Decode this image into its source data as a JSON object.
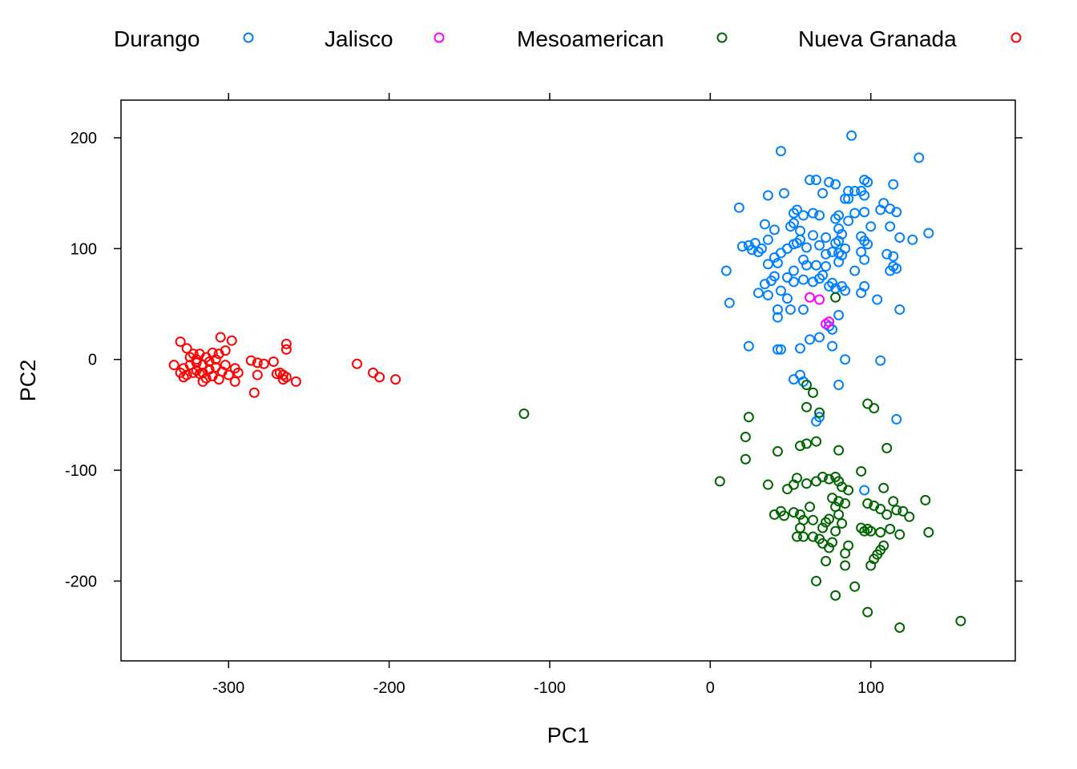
{
  "chart_data": {
    "type": "scatter",
    "title": "",
    "xlabel": "PC1",
    "ylabel": "PC2",
    "xlim": [
      -367,
      190
    ],
    "ylim": [
      -272,
      234
    ],
    "xticks": [
      -300,
      -200,
      -100,
      0,
      100
    ],
    "yticks": [
      -200,
      -100,
      0,
      100,
      200
    ],
    "legend_position": "top",
    "series": [
      {
        "name": "Durango",
        "color": "#0080ff",
        "points": [
          [
            88,
            202
          ],
          [
            44,
            188
          ],
          [
            130,
            182
          ],
          [
            62,
            162
          ],
          [
            66,
            162
          ],
          [
            96,
            162
          ],
          [
            98,
            160
          ],
          [
            74,
            160
          ],
          [
            78,
            158
          ],
          [
            114,
            158
          ],
          [
            94,
            152
          ],
          [
            90,
            152
          ],
          [
            86,
            152
          ],
          [
            70,
            150
          ],
          [
            46,
            150
          ],
          [
            36,
            148
          ],
          [
            96,
            148
          ],
          [
            84,
            145
          ],
          [
            86,
            145
          ],
          [
            18,
            137
          ],
          [
            108,
            141
          ],
          [
            112,
            136
          ],
          [
            106,
            135
          ],
          [
            116,
            133
          ],
          [
            54,
            135
          ],
          [
            52,
            132
          ],
          [
            58,
            130
          ],
          [
            64,
            132
          ],
          [
            68,
            130
          ],
          [
            90,
            132
          ],
          [
            96,
            133
          ],
          [
            80,
            130
          ],
          [
            78,
            127
          ],
          [
            86,
            125
          ],
          [
            52,
            123
          ],
          [
            50,
            120
          ],
          [
            56,
            116
          ],
          [
            34,
            122
          ],
          [
            40,
            117
          ],
          [
            100,
            120
          ],
          [
            112,
            120
          ],
          [
            80,
            118
          ],
          [
            82,
            113
          ],
          [
            80,
            107
          ],
          [
            72,
            110
          ],
          [
            64,
            112
          ],
          [
            78,
            105
          ],
          [
            94,
            111
          ],
          [
            96,
            107
          ],
          [
            98,
            104
          ],
          [
            118,
            110
          ],
          [
            126,
            108
          ],
          [
            136,
            114
          ],
          [
            36,
            108
          ],
          [
            20,
            102
          ],
          [
            24,
            103
          ],
          [
            28,
            105
          ],
          [
            32,
            100
          ],
          [
            52,
            104
          ],
          [
            48,
            100
          ],
          [
            54,
            105
          ],
          [
            56,
            108
          ],
          [
            60,
            101
          ],
          [
            68,
            103
          ],
          [
            72,
            95
          ],
          [
            76,
            97
          ],
          [
            80,
            96
          ],
          [
            84,
            100
          ],
          [
            94,
            97
          ],
          [
            110,
            95
          ],
          [
            114,
            93
          ],
          [
            44,
            96
          ],
          [
            30,
            97
          ],
          [
            26,
            99
          ],
          [
            40,
            92
          ],
          [
            36,
            86
          ],
          [
            42,
            87
          ],
          [
            52,
            80
          ],
          [
            58,
            90
          ],
          [
            60,
            85
          ],
          [
            66,
            85
          ],
          [
            72,
            84
          ],
          [
            80,
            88
          ],
          [
            82,
            94
          ],
          [
            90,
            80
          ],
          [
            96,
            90
          ],
          [
            112,
            80
          ],
          [
            114,
            84
          ],
          [
            116,
            82
          ],
          [
            10,
            80
          ],
          [
            40,
            75
          ],
          [
            38,
            71
          ],
          [
            34,
            68
          ],
          [
            48,
            74
          ],
          [
            52,
            70
          ],
          [
            58,
            72
          ],
          [
            64,
            70
          ],
          [
            68,
            73
          ],
          [
            70,
            76
          ],
          [
            74,
            66
          ],
          [
            76,
            69
          ],
          [
            78,
            64
          ],
          [
            82,
            66
          ],
          [
            84,
            62
          ],
          [
            94,
            60
          ],
          [
            96,
            66
          ],
          [
            104,
            54
          ],
          [
            118,
            45
          ],
          [
            12,
            51
          ],
          [
            30,
            60
          ],
          [
            36,
            58
          ],
          [
            44,
            62
          ],
          [
            48,
            55
          ],
          [
            42,
            45
          ],
          [
            50,
            45
          ],
          [
            42,
            38
          ],
          [
            58,
            45
          ],
          [
            74,
            30
          ],
          [
            80,
            40
          ],
          [
            76,
            27
          ],
          [
            62,
            18
          ],
          [
            68,
            20
          ],
          [
            24,
            12
          ],
          [
            42,
            9
          ],
          [
            44,
            9
          ],
          [
            56,
            10
          ],
          [
            76,
            12
          ],
          [
            84,
            0
          ],
          [
            106,
            -1
          ],
          [
            56,
            -14
          ],
          [
            52,
            -18
          ],
          [
            58,
            -20
          ],
          [
            68,
            -52
          ],
          [
            66,
            -56
          ],
          [
            80,
            -23
          ],
          [
            116,
            -54
          ],
          [
            96,
            -118
          ]
        ]
      },
      {
        "name": "Jalisco",
        "color": "#ff00ff",
        "points": [
          [
            62,
            56
          ],
          [
            68,
            54
          ],
          [
            72,
            32
          ],
          [
            74,
            34
          ]
        ]
      },
      {
        "name": "Mesoamerican",
        "color": "#006400",
        "points": [
          [
            -116,
            -49
          ],
          [
            78,
            56
          ],
          [
            60,
            -23
          ],
          [
            64,
            -30
          ],
          [
            60,
            -43
          ],
          [
            68,
            -48
          ],
          [
            98,
            -40
          ],
          [
            102,
            -44
          ],
          [
            24,
            -52
          ],
          [
            22,
            -70
          ],
          [
            22,
            -90
          ],
          [
            110,
            -80
          ],
          [
            56,
            -78
          ],
          [
            60,
            -76
          ],
          [
            66,
            -74
          ],
          [
            42,
            -83
          ],
          [
            80,
            -82
          ],
          [
            6,
            -110
          ],
          [
            36,
            -113
          ],
          [
            48,
            -117
          ],
          [
            52,
            -113
          ],
          [
            54,
            -107
          ],
          [
            60,
            -112
          ],
          [
            66,
            -110
          ],
          [
            70,
            -106
          ],
          [
            74,
            -108
          ],
          [
            78,
            -106
          ],
          [
            80,
            -110
          ],
          [
            82,
            -115
          ],
          [
            86,
            -118
          ],
          [
            94,
            -101
          ],
          [
            108,
            -116
          ],
          [
            76,
            -125
          ],
          [
            80,
            -128
          ],
          [
            84,
            -130
          ],
          [
            78,
            -133
          ],
          [
            62,
            -133
          ],
          [
            98,
            -130
          ],
          [
            102,
            -132
          ],
          [
            106,
            -135
          ],
          [
            110,
            -140
          ],
          [
            114,
            -128
          ],
          [
            116,
            -136
          ],
          [
            120,
            -137
          ],
          [
            124,
            -142
          ],
          [
            134,
            -127
          ],
          [
            40,
            -140
          ],
          [
            44,
            -137
          ],
          [
            46,
            -141
          ],
          [
            56,
            -140
          ],
          [
            52,
            -138
          ],
          [
            58,
            -145
          ],
          [
            64,
            -145
          ],
          [
            72,
            -147
          ],
          [
            74,
            -144
          ],
          [
            80,
            -140
          ],
          [
            82,
            -148
          ],
          [
            58,
            -160
          ],
          [
            56,
            -152
          ],
          [
            70,
            -152
          ],
          [
            78,
            -155
          ],
          [
            94,
            -152
          ],
          [
            96,
            -155
          ],
          [
            98,
            -153
          ],
          [
            100,
            -155
          ],
          [
            106,
            -156
          ],
          [
            112,
            -153
          ],
          [
            118,
            -158
          ],
          [
            136,
            -156
          ],
          [
            54,
            -160
          ],
          [
            64,
            -160
          ],
          [
            68,
            -162
          ],
          [
            70,
            -166
          ],
          [
            74,
            -170
          ],
          [
            76,
            -165
          ],
          [
            86,
            -168
          ],
          [
            84,
            -175
          ],
          [
            108,
            -168
          ],
          [
            106,
            -172
          ],
          [
            104,
            -176
          ],
          [
            102,
            -180
          ],
          [
            100,
            -186
          ],
          [
            72,
            -182
          ],
          [
            84,
            -186
          ],
          [
            90,
            -205
          ],
          [
            66,
            -200
          ],
          [
            78,
            -213
          ],
          [
            98,
            -228
          ],
          [
            118,
            -242
          ],
          [
            156,
            -236
          ]
        ]
      },
      {
        "name": "Nueva Granada",
        "color": "#ff0000",
        "points": [
          [
            -330,
            16
          ],
          [
            -326,
            10
          ],
          [
            -305,
            20
          ],
          [
            -298,
            17
          ],
          [
            -264,
            14
          ],
          [
            -264,
            9
          ],
          [
            -334,
            -5
          ],
          [
            -328,
            -8
          ],
          [
            -320,
            -10
          ],
          [
            -316,
            -12
          ],
          [
            -312,
            -9
          ],
          [
            -308,
            -7
          ],
          [
            -304,
            -11
          ],
          [
            -300,
            -14
          ],
          [
            -322,
            5
          ],
          [
            -318,
            5
          ],
          [
            -314,
            2
          ],
          [
            -310,
            6
          ],
          [
            -306,
            5
          ],
          [
            -302,
            8
          ],
          [
            -326,
            -14
          ],
          [
            -322,
            -12
          ],
          [
            -318,
            -13
          ],
          [
            -316,
            -20
          ],
          [
            -314,
            -17
          ],
          [
            -310,
            -15
          ],
          [
            -306,
            -18
          ],
          [
            -330,
            -12
          ],
          [
            -324,
            -5
          ],
          [
            -320,
            -3
          ],
          [
            -312,
            -2
          ],
          [
            -308,
            0
          ],
          [
            -302,
            -5
          ],
          [
            -296,
            -8
          ],
          [
            -294,
            -12
          ],
          [
            -296,
            -20
          ],
          [
            -286,
            -1
          ],
          [
            -282,
            -3
          ],
          [
            -278,
            -4
          ],
          [
            -272,
            -2
          ],
          [
            -268,
            -12
          ],
          [
            -266,
            -14
          ],
          [
            -270,
            -13
          ],
          [
            -264,
            -16
          ],
          [
            -266,
            -18
          ],
          [
            -282,
            -14
          ],
          [
            -284,
            -30
          ],
          [
            -258,
            -20
          ],
          [
            -220,
            -4
          ],
          [
            -210,
            -12
          ],
          [
            -206,
            -16
          ],
          [
            -196,
            -18
          ],
          [
            -320,
            0
          ],
          [
            -316,
            -5
          ],
          [
            -324,
            2
          ],
          [
            -328,
            -16
          ]
        ]
      }
    ]
  }
}
